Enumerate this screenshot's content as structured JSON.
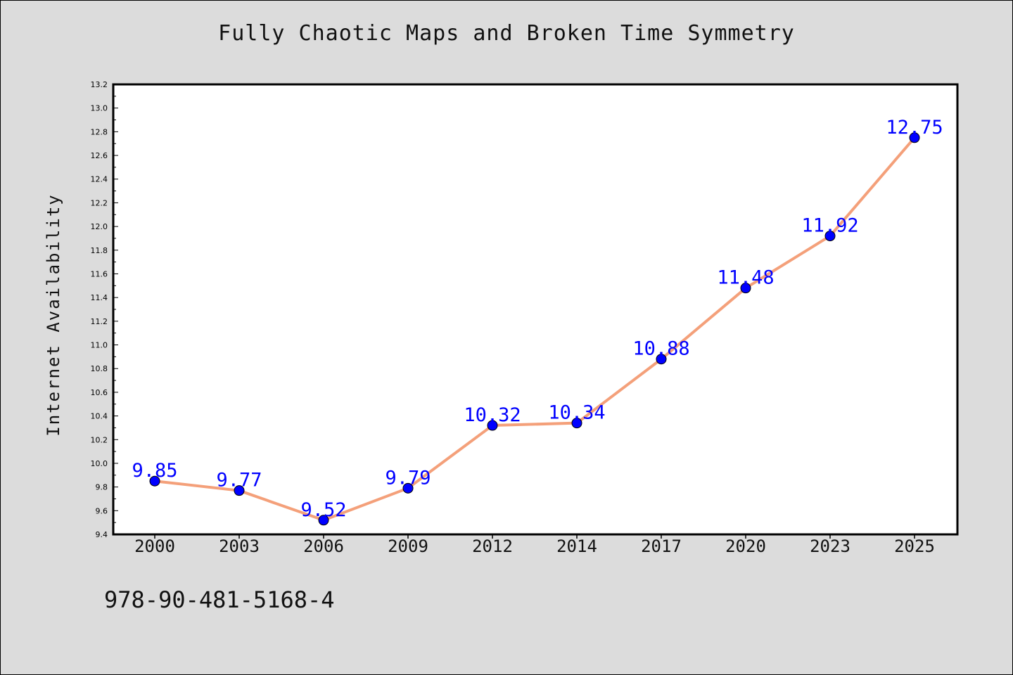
{
  "chart_data": {
    "type": "line",
    "title": "Fully Chaotic Maps and Broken Time Symmetry",
    "xlabel": "",
    "ylabel": "Internet Availability",
    "categories": [
      "2000",
      "2003",
      "2006",
      "2009",
      "2012",
      "2014",
      "2017",
      "2020",
      "2023",
      "2025"
    ],
    "series": [
      {
        "values": [
          9.85,
          9.77,
          9.52,
          9.79,
          10.32,
          10.34,
          10.88,
          11.48,
          11.92,
          12.75
        ],
        "data_labels": [
          "9.85",
          "9.77",
          "9.52",
          "9.79",
          "10.32",
          "10.34",
          "10.88",
          "11.48",
          "11.92",
          "12.75"
        ],
        "line_color": "#f4a07a",
        "marker_color": "#0000ff"
      }
    ],
    "ylim": [
      9.4,
      13.2
    ],
    "yticks": [
      "9.4",
      "9.6",
      "9.8",
      "10.0",
      "10.2",
      "10.4",
      "10.6",
      "10.8",
      "11.0",
      "11.2",
      "11.4",
      "11.6",
      "11.8",
      "12.0",
      "12.2",
      "12.4",
      "12.6",
      "12.8",
      "13.0",
      "13.2"
    ],
    "grid": false,
    "legend": "none"
  },
  "footer_text": "978-90-481-5168-4",
  "colors": {
    "background": "#dcdcdc",
    "plot_area": "#ffffff",
    "data_label": "#0000ff"
  }
}
